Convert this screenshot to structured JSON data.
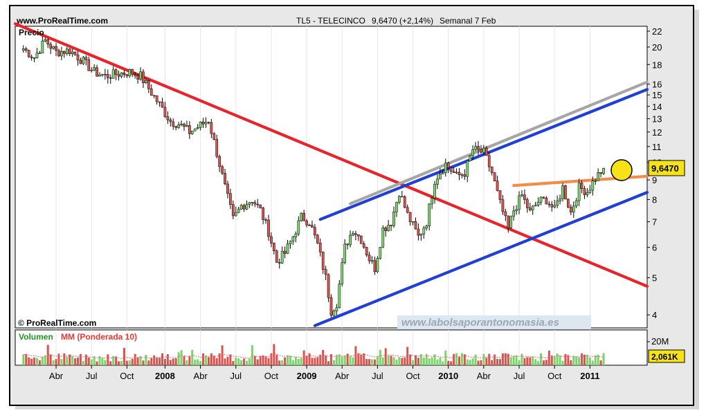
{
  "header": {
    "site": "www.ProRealTime.com",
    "instrument": "TL5 - TELECINCO",
    "price": "9,6470 (+2,14%)",
    "period": "Semanal  7 Feb"
  },
  "price_panel": {
    "label": "Precio",
    "copyright": "© ProRealTime.com",
    "watermark": "www.labolsaporantonomasia.es",
    "last_price_tag": "9,6470"
  },
  "volume_panel": {
    "label_volume": "Volumen",
    "label_ma": "MM (Ponderada 10)",
    "scale_label": "20M",
    "last_value_tag": "2,061K"
  },
  "colors": {
    "frame": "#000000",
    "panel_bg": "#ffffff",
    "outer_bg": "#e8e8e8",
    "up_candle": "#7bd36b",
    "down_candle": "#d9534f",
    "red_trend": "#e8232a",
    "blue_channel": "#1f3fd6",
    "gray_line": "#a6a6a6",
    "orange_line": "#f58c45",
    "tag_bg": "#f7e315",
    "volume_ma": "#e36a6a"
  },
  "chart_data": {
    "type": "candlestick",
    "frequency": "weekly",
    "y_scale": "log",
    "y_ticks": [
      4,
      5,
      6,
      7,
      8,
      9,
      10,
      11,
      12,
      13,
      14,
      15,
      16,
      18,
      20,
      22
    ],
    "x_tick_labels": [
      "Abr",
      "Jul",
      "Oct",
      "2008",
      "Abr",
      "Jul",
      "Oct",
      "2009",
      "Abr",
      "Jul",
      "Oct",
      "2010",
      "Abr",
      "Jul",
      "Oct",
      "2011"
    ],
    "price_path": [
      [
        "2007-01-08",
        19.8
      ],
      [
        "2007-02-05",
        18.8
      ],
      [
        "2007-03-05",
        20.8
      ],
      [
        "2007-04-02",
        19.4
      ],
      [
        "2007-05-07",
        19.6
      ],
      [
        "2007-06-04",
        18.6
      ],
      [
        "2007-07-09",
        17.2
      ],
      [
        "2007-08-06",
        16.8
      ],
      [
        "2007-09-03",
        17.0
      ],
      [
        "2007-10-08",
        17.2
      ],
      [
        "2007-11-05",
        16.8
      ],
      [
        "2007-12-03",
        15.2
      ],
      [
        "2007-12-31",
        13.8
      ],
      [
        "2008-01-21",
        12.8
      ],
      [
        "2008-02-11",
        12.6
      ],
      [
        "2008-03-10",
        12.0
      ],
      [
        "2008-04-07",
        12.5
      ],
      [
        "2008-04-28",
        12.9
      ],
      [
        "2008-05-19",
        10.6
      ],
      [
        "2008-06-09",
        8.6
      ],
      [
        "2008-06-30",
        7.1
      ],
      [
        "2008-07-21",
        7.7
      ],
      [
        "2008-08-18",
        8.0
      ],
      [
        "2008-09-08",
        7.5
      ],
      [
        "2008-09-29",
        6.6
      ],
      [
        "2008-10-20",
        5.5
      ],
      [
        "2008-11-10",
        5.8
      ],
      [
        "2008-12-01",
        6.4
      ],
      [
        "2008-12-22",
        7.2
      ],
      [
        "2009-01-12",
        7.0
      ],
      [
        "2009-02-02",
        6.1
      ],
      [
        "2009-02-23",
        5.0
      ],
      [
        "2009-03-09",
        4.1
      ],
      [
        "2009-03-23",
        4.3
      ],
      [
        "2009-04-13",
        6.0
      ],
      [
        "2009-05-04",
        6.7
      ],
      [
        "2009-05-25",
        6.3
      ],
      [
        "2009-06-15",
        5.6
      ],
      [
        "2009-06-29",
        5.3
      ],
      [
        "2009-07-20",
        6.7
      ],
      [
        "2009-08-10",
        7.0
      ],
      [
        "2009-08-31",
        8.4
      ],
      [
        "2009-09-21",
        7.3
      ],
      [
        "2009-10-19",
        6.4
      ],
      [
        "2009-11-09",
        7.0
      ],
      [
        "2009-11-30",
        9.0
      ],
      [
        "2009-12-28",
        9.9
      ],
      [
        "2010-01-25",
        9.2
      ],
      [
        "2010-02-15",
        9.4
      ],
      [
        "2010-03-08",
        10.8
      ],
      [
        "2010-04-05",
        10.6
      ],
      [
        "2010-04-26",
        9.4
      ],
      [
        "2010-05-17",
        7.8
      ],
      [
        "2010-06-07",
        6.7
      ],
      [
        "2010-06-21",
        7.5
      ],
      [
        "2010-07-12",
        8.2
      ],
      [
        "2010-08-02",
        7.4
      ],
      [
        "2010-08-23",
        7.9
      ],
      [
        "2010-09-13",
        8.0
      ],
      [
        "2010-10-04",
        7.5
      ],
      [
        "2010-10-25",
        8.6
      ],
      [
        "2010-11-15",
        7.4
      ],
      [
        "2010-12-06",
        8.6
      ],
      [
        "2010-12-27",
        8.4
      ],
      [
        "2011-01-17",
        9.1
      ],
      [
        "2011-02-07",
        9.647
      ]
    ],
    "last_close": 9.647,
    "change_pct": 2.14,
    "trend_lines": [
      {
        "name": "red-downtrend",
        "color": "#e8232a",
        "from": [
          "2006-12-18",
          23.0
        ],
        "to": [
          "2011-05-30",
          4.75
        ]
      },
      {
        "name": "blue-channel-lower",
        "color": "#1f3fd6",
        "from": [
          "2009-01-26",
          3.75
        ],
        "to": [
          "2011-05-30",
          8.35
        ]
      },
      {
        "name": "blue-channel-upper",
        "color": "#1f3fd6",
        "from": [
          "2009-02-09",
          7.1
        ],
        "to": [
          "2011-05-30",
          15.5
        ]
      },
      {
        "name": "gray-parallel",
        "color": "#a6a6a6",
        "from": [
          "2009-04-27",
          7.8
        ],
        "to": [
          "2011-05-30",
          16.2
        ]
      },
      {
        "name": "orange-resistance",
        "color": "#f58c45",
        "from": [
          "2010-06-21",
          8.7
        ],
        "to": [
          "2011-05-30",
          9.2
        ]
      }
    ]
  }
}
